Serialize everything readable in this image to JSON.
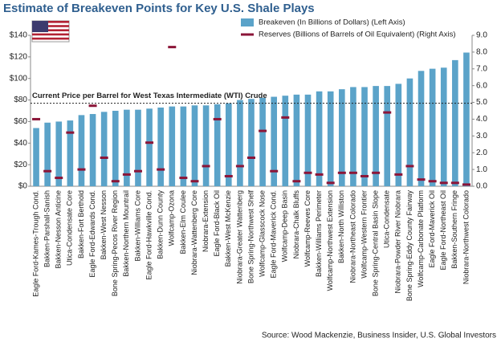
{
  "chart_data": {
    "type": "bar",
    "title": "Estimate of Breakeven Points for Key U.S. Shale Plays",
    "source": "Source: Wood Mackenzie, Business Insider, U.S. Global Investors",
    "categories": [
      "Eagle Ford-Kames-Trough Cond.",
      "Bakken-Parshall-Sanish",
      "Bakken-Nesson Anticine",
      "Utica-Condensate Core",
      "Bakken-Fort Berthold",
      "Eagle Ford-Edwards Cond.",
      "Bakken-West Nesson",
      "Bone Spring-Pecos River Region",
      "Bakken-Northern Mountrail",
      "Bakken-Williams Core",
      "Eagle Ford-Hawkville Cond.",
      "Bakken-Dunn County",
      "Wolfcamp-Ozona",
      "Bakken-Elm Coulee",
      "Niobrara-Wattenberg Core",
      "Niobrara-Extension",
      "Eagle Ford-Black Oil",
      "Bakken-West McKenzie",
      "Niobrara-Greater Wattenberg",
      "Bone Spring-Northwest Shelf",
      "Wolfcamp-Glasscock Nose",
      "Eagle Ford-Maverick Cond.",
      "Wolfcamp-Deep Basin",
      "Niobrara-Chalk Bluffs",
      "Wolfcamp-Reeves Core",
      "Bakken-Williams Perimeter",
      "Wolfcamp-Northwest Extension",
      "Bakken-North Williston",
      "Niobrara-Northeast Colorado",
      "Wolfcamp-Western Frontier",
      "Bone Spring-Central Basin Slope",
      "Utica-Condensate",
      "Niobrara-Powder River Niobrara",
      "Bone Spring-Eddy County Fairway",
      "Wolfcamp-Carbonate Platform",
      "Eagle Ford-Maverick Oil",
      "Eagle Ford-Northeast Oil",
      "Bakken-Southern Fringe",
      "Niobrara-Northwest Colorado"
    ],
    "series": [
      {
        "name": "Breakeven (In Billions of Dollars) (Left Axis)",
        "color": "#5ba3c9",
        "values": [
          54,
          59,
          60,
          61,
          66,
          67,
          69,
          70,
          71,
          71,
          72,
          73,
          74,
          74,
          75,
          75,
          76,
          77,
          80,
          81,
          82,
          83,
          84,
          85,
          85,
          88,
          88,
          90,
          92,
          92,
          93,
          93,
          95,
          100,
          107,
          109,
          110,
          117,
          124
        ]
      },
      {
        "name": "Reserves (Billions of Barrels of Oil Equivalent) (Right Axis)",
        "color": "#8b1538",
        "axis": "y2",
        "marker": "dash",
        "values": [
          4.0,
          0.9,
          0.5,
          3.2,
          1.0,
          4.8,
          1.7,
          0.3,
          0.7,
          0.9,
          2.6,
          1.0,
          8.3,
          0.5,
          0.3,
          1.2,
          4.0,
          0.6,
          1.2,
          1.7,
          3.3,
          0.9,
          4.1,
          0.3,
          0.8,
          0.7,
          0.2,
          0.8,
          0.8,
          0.6,
          0.8,
          4.4,
          0.7,
          1.2,
          0.4,
          0.3,
          0.2,
          0.2,
          0.1
        ]
      }
    ],
    "ylim": [
      0,
      140
    ],
    "yticks": [
      {
        "value": 0,
        "label": "$0"
      },
      {
        "value": 20,
        "label": "$20"
      },
      {
        "value": 40,
        "label": "$40"
      },
      {
        "value": 60,
        "label": "$60"
      },
      {
        "value": 80,
        "label": "$80"
      },
      {
        "value": 100,
        "label": "$100"
      },
      {
        "value": 120,
        "label": "$120"
      },
      {
        "value": 140,
        "label": "$140"
      }
    ],
    "y2lim": [
      0,
      9
    ],
    "y2ticks": [
      {
        "value": 0,
        "label": "0.0"
      },
      {
        "value": 1,
        "label": "1.0"
      },
      {
        "value": 2,
        "label": "2.0"
      },
      {
        "value": 3,
        "label": "3.0"
      },
      {
        "value": 4,
        "label": "4.0"
      },
      {
        "value": 5,
        "label": "5.0"
      },
      {
        "value": 6,
        "label": "6.0"
      },
      {
        "value": 7,
        "label": "7.0"
      },
      {
        "value": 8,
        "label": "8.0"
      },
      {
        "value": 9,
        "label": "9.0"
      }
    ],
    "reference_line": {
      "value": 77,
      "label": "Current Price per Barrel for West Texas Intermediate (WTI) Crude"
    },
    "legend": "top-right"
  }
}
